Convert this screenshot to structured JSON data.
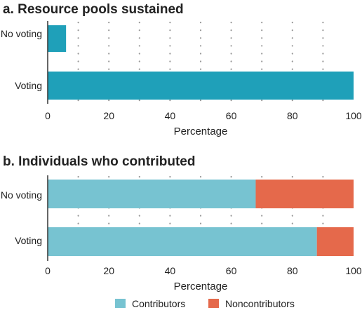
{
  "chart_data": [
    {
      "type": "bar",
      "orientation": "horizontal",
      "title": "a.  Resource pools sustained",
      "xlabel": "Percentage",
      "ylabel": "",
      "xlim": [
        0,
        100
      ],
      "xticks": [
        "0",
        "20",
        "40",
        "60",
        "80",
        "100"
      ],
      "grid": "dotted vertical",
      "categories": [
        "No voting",
        "Voting"
      ],
      "series": [
        {
          "values": [
            6,
            100
          ],
          "color": "#1fa0b9"
        }
      ]
    },
    {
      "type": "bar",
      "orientation": "horizontal",
      "stacked": true,
      "title": "b. Individuals who contributed",
      "xlabel": "Percentage",
      "ylabel": "",
      "xlim": [
        0,
        100
      ],
      "xticks": [
        "0",
        "20",
        "40",
        "60",
        "80",
        "100"
      ],
      "grid": "dotted vertical",
      "categories": [
        "No voting",
        "Voting"
      ],
      "series": [
        {
          "name": "Contributors",
          "values": [
            68,
            88
          ],
          "color": "#77c3d1"
        },
        {
          "name": "Noncontributors",
          "values": [
            32,
            12
          ],
          "color": "#e5694b"
        }
      ],
      "legend": "bottom"
    }
  ]
}
